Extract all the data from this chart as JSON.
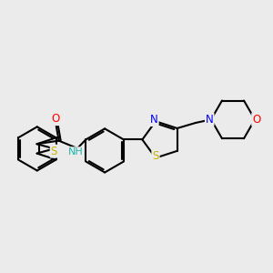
{
  "background_color": "#ebebeb",
  "bond_color": "#000000",
  "bond_width": 1.5,
  "dbo": 0.06,
  "atom_colors": {
    "S": "#c8b400",
    "N": "#0000ff",
    "O": "#ff0000",
    "H": "#20b2aa",
    "C": "#000000"
  },
  "font_size": 8.5
}
